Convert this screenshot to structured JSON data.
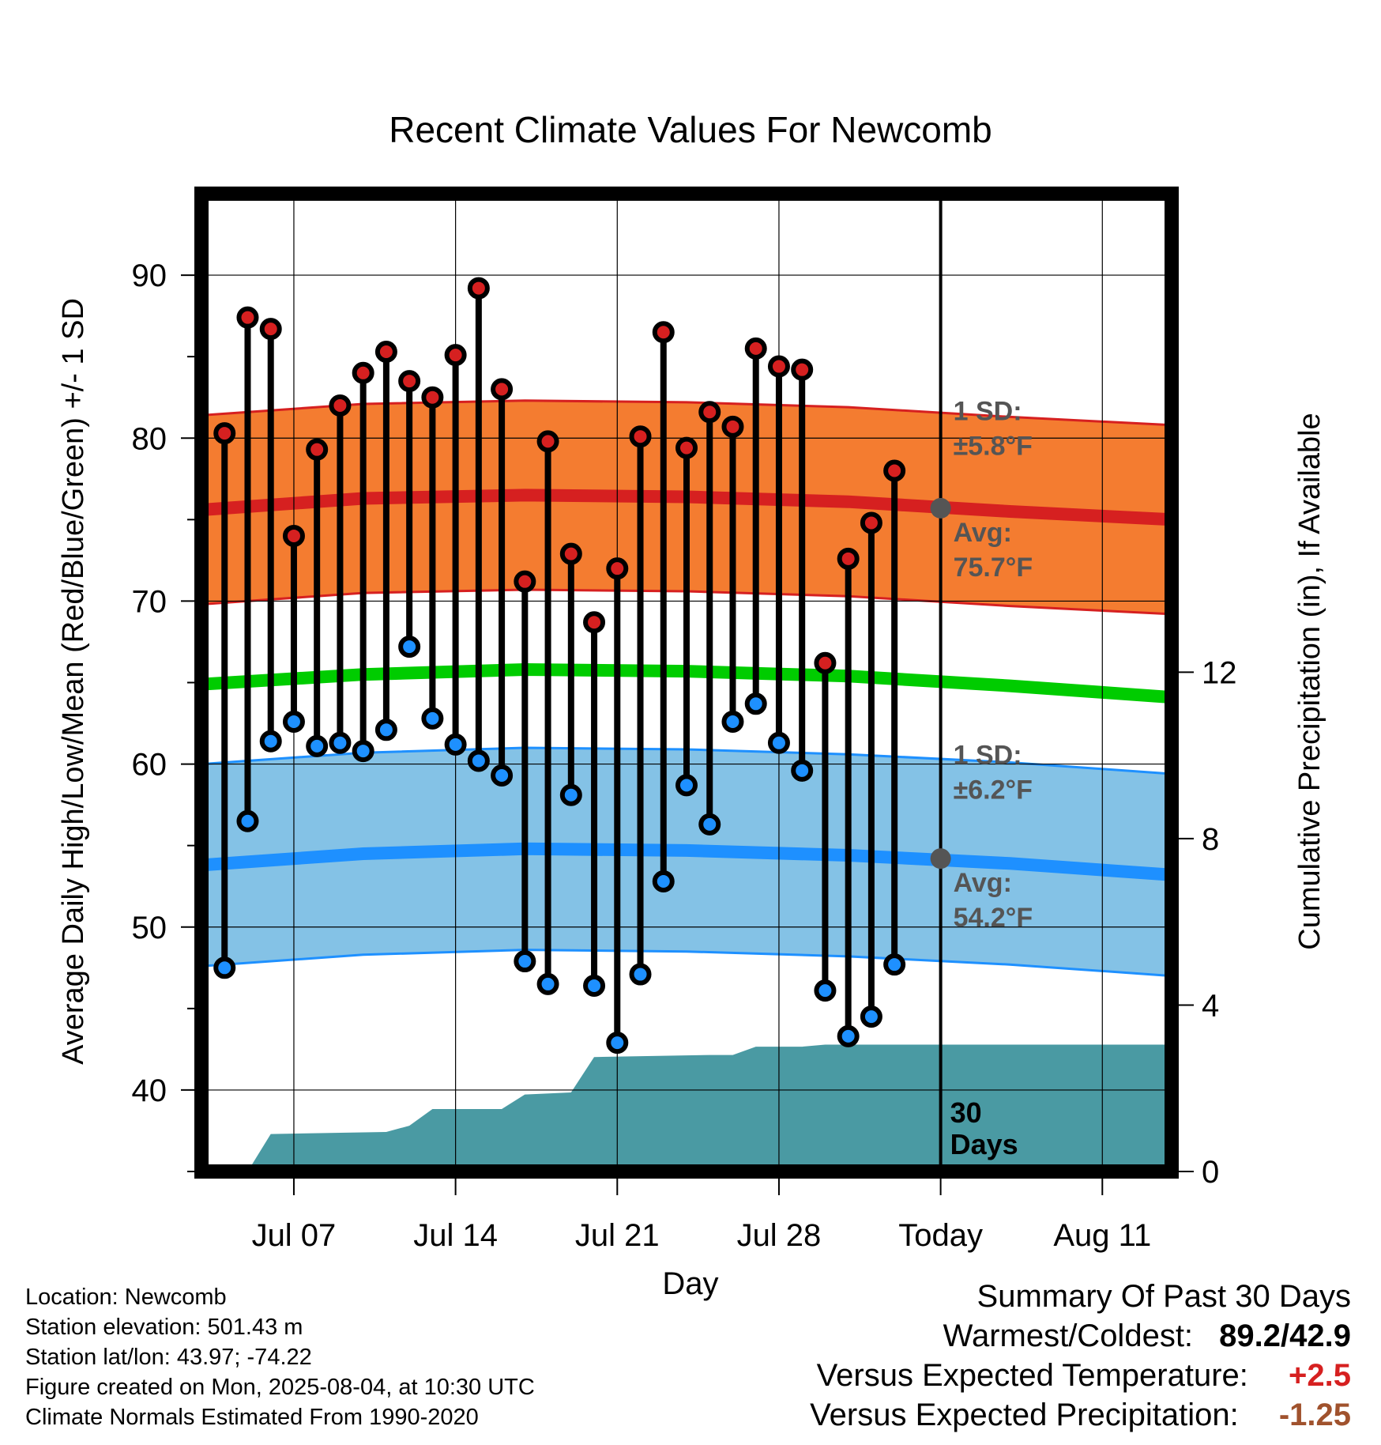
{
  "chart_data": {
    "type": "line",
    "title": "Recent Climate Values For Newcomb",
    "xlabel": "Day",
    "ylabel": "Average Daily High/Low/Mean (Red/Blue/Green) +/- 1 SD",
    "y2label": "Cumulative Precipitation (in), If Available",
    "ylim": [
      35,
      95
    ],
    "y2lim": [
      0,
      23.5
    ],
    "xlim": [
      "2025-07-03",
      "2025-08-14"
    ],
    "yticks": [
      "40",
      "50",
      "60",
      "70",
      "80",
      "90"
    ],
    "y2ticks": [
      "0",
      "4",
      "8",
      "12"
    ],
    "xticks": [
      {
        "date": "2025-07-07",
        "label": "Jul 07"
      },
      {
        "date": "2025-07-14",
        "label": "Jul 14"
      },
      {
        "date": "2025-07-21",
        "label": "Jul 21"
      },
      {
        "date": "2025-07-28",
        "label": "Jul 28"
      },
      {
        "date": "2025-08-04",
        "label": "Today"
      },
      {
        "date": "2025-08-11",
        "label": "Aug 11"
      }
    ],
    "today": "2025-08-04",
    "dates": [
      "2025-07-04",
      "2025-07-05",
      "2025-07-06",
      "2025-07-07",
      "2025-07-08",
      "2025-07-09",
      "2025-07-10",
      "2025-07-11",
      "2025-07-12",
      "2025-07-13",
      "2025-07-14",
      "2025-07-15",
      "2025-07-16",
      "2025-07-17",
      "2025-07-18",
      "2025-07-19",
      "2025-07-20",
      "2025-07-21",
      "2025-07-22",
      "2025-07-23",
      "2025-07-24",
      "2025-07-25",
      "2025-07-26",
      "2025-07-27",
      "2025-07-28",
      "2025-07-29",
      "2025-07-30",
      "2025-07-31",
      "2025-08-01",
      "2025-08-02",
      "2025-08-03"
    ],
    "highs": [
      80.3,
      87.4,
      86.7,
      74.0,
      79.3,
      82.0,
      84.0,
      85.3,
      83.5,
      82.5,
      85.1,
      89.2,
      83.0,
      71.2,
      79.8,
      72.9,
      68.7,
      72.0,
      80.1,
      86.5,
      79.4,
      81.6,
      80.7,
      85.5,
      84.4,
      84.2,
      66.2,
      72.6,
      74.8,
      78.0,
      null
    ],
    "lows": [
      47.5,
      56.5,
      61.4,
      62.6,
      61.1,
      61.3,
      60.8,
      62.1,
      67.2,
      62.8,
      61.2,
      60.2,
      59.3,
      47.9,
      46.5,
      58.1,
      46.4,
      42.9,
      47.1,
      52.8,
      58.7,
      56.3,
      62.6,
      63.7,
      61.3,
      59.6,
      46.1,
      43.3,
      44.5,
      47.7,
      null
    ],
    "normals": {
      "dates": [
        "2025-07-03",
        "2025-07-10",
        "2025-07-17",
        "2025-07-24",
        "2025-07-31",
        "2025-08-07",
        "2025-08-14"
      ],
      "high_avg": [
        75.6,
        76.3,
        76.5,
        76.4,
        76.1,
        75.5,
        75.0
      ],
      "high_sd": 5.8,
      "low_avg": [
        53.8,
        54.5,
        54.8,
        54.7,
        54.4,
        53.9,
        53.2
      ],
      "low_sd": 6.2,
      "mean_avg": [
        64.9,
        65.5,
        65.8,
        65.7,
        65.4,
        64.8,
        64.1
      ]
    },
    "precip": {
      "dates": [
        "2025-07-05",
        "2025-07-06",
        "2025-07-11",
        "2025-07-12",
        "2025-07-13",
        "2025-07-16",
        "2025-07-17",
        "2025-07-19",
        "2025-07-20",
        "2025-07-25",
        "2025-07-26",
        "2025-07-27",
        "2025-07-29",
        "2025-07-30",
        "2025-08-14"
      ],
      "values": [
        0.0,
        0.9,
        0.95,
        1.1,
        1.5,
        1.5,
        1.85,
        1.9,
        2.75,
        2.8,
        2.8,
        3.0,
        3.0,
        3.05,
        3.05
      ]
    },
    "annotations": {
      "high_sd_label": "1 SD:",
      "high_sd_value": "±5.8°F",
      "high_avg_label": "Avg:",
      "high_avg_value": "75.7°F",
      "low_sd_label": "1 SD:",
      "low_sd_value": "±6.2°F",
      "low_avg_label": "Avg:",
      "low_avg_value": "54.2°F",
      "days_number": "30",
      "days_word": "Days"
    },
    "colors": {
      "high_band": "#f47c30",
      "high_line": "#d62020",
      "low_band": "#84c2e6",
      "low_line": "#1e90ff",
      "mean_line": "#00cc00",
      "precip": "#4a9aa3",
      "high_dot": "#d62020",
      "low_dot": "#1e90ff",
      "annotation": "#555555"
    }
  },
  "info": {
    "location": "Location: Newcomb",
    "elevation": "Station elevation: 501.43 m",
    "latlon": "Station lat/lon: 43.97; -74.22",
    "created": "Figure created on Mon, 2025-08-04, at 10:30 UTC",
    "normals": "Climate Normals Estimated From 1990-2020"
  },
  "summary": {
    "heading": "Summary Of Past 30 Days",
    "warm_cold_label": "Warmest/Coldest:",
    "warm_cold_value": "89.2/42.9",
    "temp_label": "Versus Expected Temperature:",
    "temp_value": "+2.5",
    "temp_color": "#d62020",
    "precip_label": "Versus Expected Precipitation:",
    "precip_value": "-1.25",
    "precip_color": "#a0522d"
  }
}
